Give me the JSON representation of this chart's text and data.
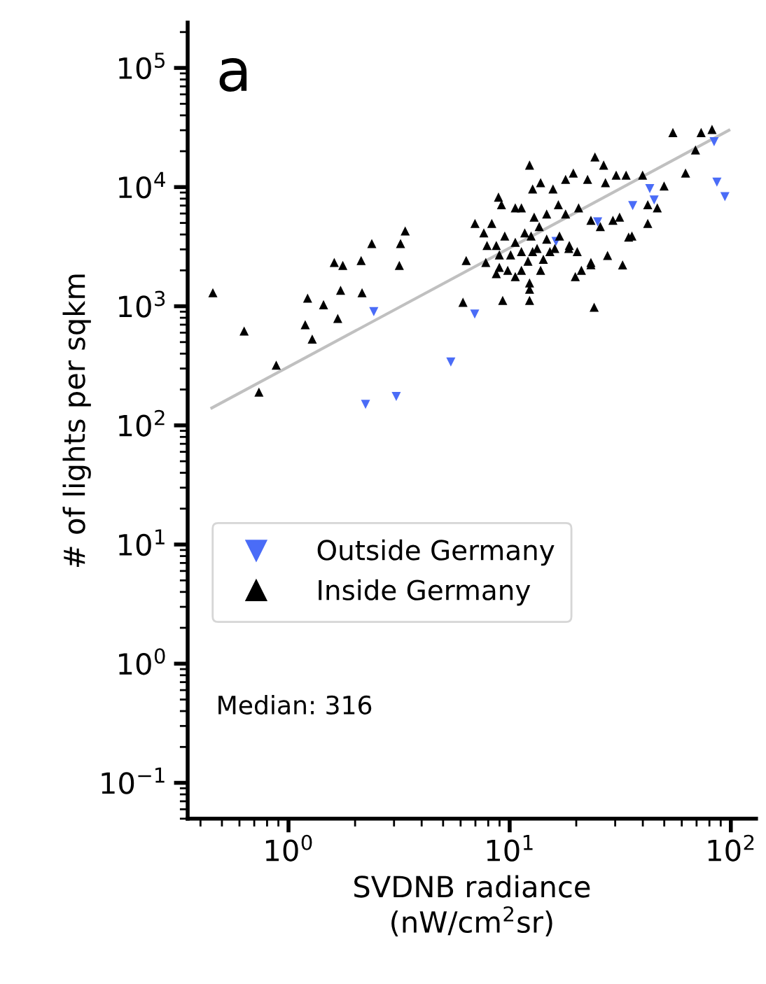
{
  "chart_data": {
    "type": "scatter",
    "xlabel": "SVDNB radiance\n(nW/cm$^{2}$sr)",
    "ylabel": "# of lights per sqkm",
    "log": "xy",
    "grid": false,
    "legend": "left",
    "xlim": [
      0.35,
      130
    ],
    "ylim": [
      0.05,
      240000
    ],
    "xticks": [
      {
        "value": 1,
        "label": "10$^{0}$"
      },
      {
        "value": 10,
        "label": "10$^{1}$"
      },
      {
        "value": 100,
        "label": "10$^{2}$"
      }
    ],
    "yticks": [
      {
        "value": 0.1,
        "label": "10$^{−1}$"
      },
      {
        "value": 1,
        "label": "10$^{0}$"
      },
      {
        "value": 10,
        "label": "10$^{1}$"
      },
      {
        "value": 100,
        "label": "10$^{2}$"
      },
      {
        "value": 1000,
        "label": "10$^{3}$"
      },
      {
        "value": 10000,
        "label": "10$^{4}$"
      },
      {
        "value": 100000,
        "label": "10$^{5}$"
      }
    ],
    "annotations": [
      "a",
      "Median: 316"
    ],
    "series": [
      {
        "type": "line",
        "color": "#c0c0c0",
        "marker": "none",
        "x": [
          0.45,
          98
        ],
        "values": [
          140,
          30000
        ]
      },
      {
        "name": "Outside Germany",
        "color": "#4a6cf7",
        "marker": "triangle_down",
        "x": [
          2.43,
          2.23,
          3.07,
          5.42,
          6.95,
          16.2,
          25,
          36,
          43,
          45,
          84,
          86.5,
          94
        ],
        "values": [
          900,
          150,
          175,
          340,
          860,
          3500,
          5100,
          7000,
          9700,
          7800,
          24000,
          11000,
          8300
        ]
      },
      {
        "name": "Inside Germany",
        "color": "#000000",
        "marker": "triangle",
        "x": [
          0.455,
          0.63,
          0.735,
          0.88,
          1.22,
          1.19,
          1.28,
          1.44,
          1.61,
          1.76,
          1.72,
          1.67,
          2.13,
          2.15,
          2.38,
          3.21,
          3.37,
          3.17,
          6.15,
          6.36,
          6.97,
          24.1,
          54.7,
          62.4,
          69.2,
          73.4,
          82.2,
          49.9,
          39.9,
          33.6,
          32.4,
          27.7,
          23.3,
          34.5,
          42.1,
          46.5,
          42.1,
          12.3,
          24.3,
          26.6,
          27.1,
          19.4,
          17.9,
          22.5,
          30.3,
          13.8,
          12.7,
          15.7,
          16.6,
          8.9,
          9.18,
          10.6,
          11.3,
          12.9,
          14.7,
          17.9,
          20.5,
          23.3,
          25.7,
          29.3,
          31.4,
          35.7,
          8.3,
          7.64,
          8.7,
          7.9,
          9.5,
          10.6,
          11.7,
          13.6,
          12.5,
          14.7,
          16.8,
          18.5,
          20.2,
          15.2,
          12.7,
          11.3,
          10.1,
          8.98,
          7.8,
          8.98,
          9.8,
          8.7,
          11.3,
          10.6,
          12.3,
          13.8,
          12.1,
          13.3,
          9.3,
          12.3,
          12.3,
          14.2,
          16.0,
          18.6,
          19.8,
          21.1,
          23.3
        ],
        "values": [
          1300,
          620,
          190,
          320,
          1170,
          700,
          530,
          1030,
          2330,
          2200,
          1360,
          790,
          2420,
          1300,
          3360,
          3360,
          4280,
          2200,
          1080,
          2420,
          4950,
          980,
          28700,
          13100,
          20500,
          28700,
          30500,
          10200,
          12600,
          12600,
          2220,
          2670,
          2330,
          3800,
          7120,
          6700,
          4950,
          15300,
          17900,
          15300,
          10900,
          13100,
          11600,
          11600,
          12600,
          10900,
          9650,
          9650,
          7120,
          8240,
          7120,
          6700,
          6700,
          5590,
          5940,
          5940,
          6700,
          5260,
          4660,
          5260,
          5590,
          3880,
          4950,
          4130,
          3240,
          3240,
          3880,
          3440,
          4130,
          4660,
          3880,
          3660,
          3880,
          3050,
          2870,
          2870,
          2870,
          2870,
          2700,
          2700,
          2330,
          2120,
          2000,
          1880,
          2000,
          1770,
          1570,
          2000,
          2390,
          3050,
          1120,
          1120,
          1390,
          2480,
          3050,
          3240,
          1770,
          2000,
          2230
        ]
      }
    ]
  }
}
